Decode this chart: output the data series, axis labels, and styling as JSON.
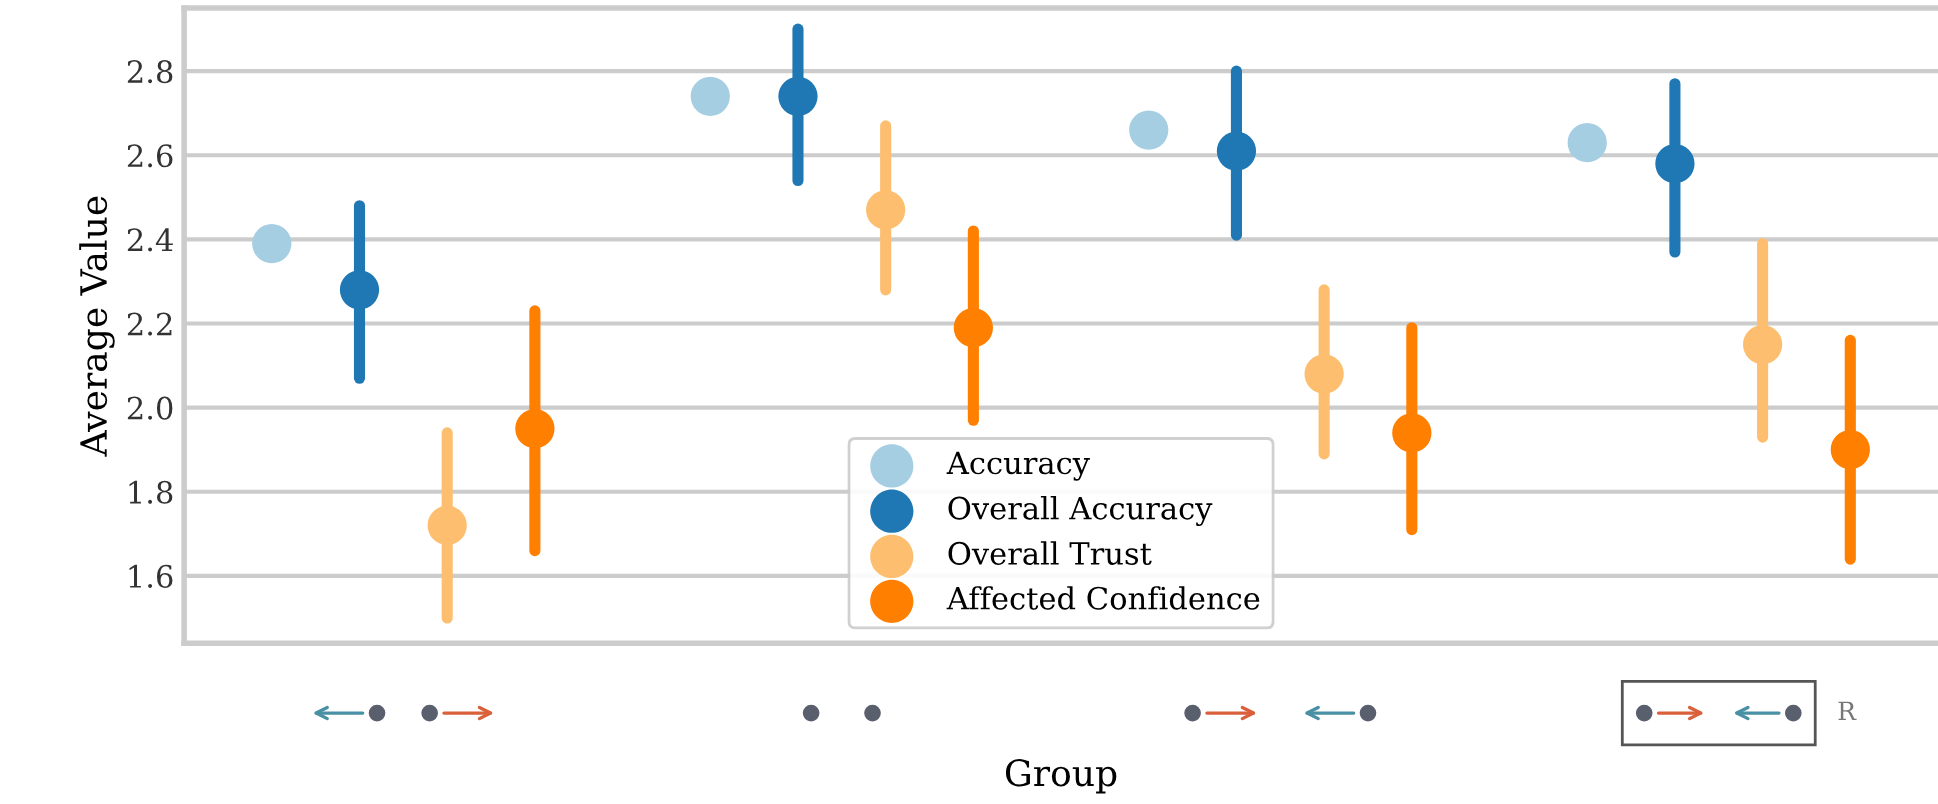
{
  "chart_data": {
    "type": "scatter",
    "xlabel": "Group",
    "ylabel": "Average Value",
    "categories": [
      null,
      null,
      null,
      null
    ],
    "series": [
      {
        "name": "Accuracy",
        "color": "#a6cee3",
        "values": [
          2.39,
          2.74,
          2.66,
          2.63
        ],
        "errors": [
          null,
          null,
          null,
          null
        ]
      },
      {
        "name": "Overall Accuracy",
        "color": "#1f78b4",
        "values": [
          2.28,
          2.74,
          2.61,
          2.58
        ],
        "errors": [
          [
            2.07,
            2.48
          ],
          [
            2.54,
            2.9
          ],
          [
            2.41,
            2.8
          ],
          [
            2.37,
            2.77
          ]
        ]
      },
      {
        "name": "Overall Trust",
        "color": "#fdbf6f",
        "values": [
          1.72,
          2.47,
          2.08,
          2.15
        ],
        "errors": [
          [
            1.5,
            1.94
          ],
          [
            2.28,
            2.67
          ],
          [
            1.89,
            2.28
          ],
          [
            1.93,
            2.39
          ]
        ]
      },
      {
        "name": "Affected Confidence",
        "color": "#ff7f00",
        "values": [
          1.95,
          2.19,
          1.94,
          1.9
        ],
        "errors": [
          [
            1.66,
            2.23
          ],
          [
            1.97,
            2.42
          ],
          [
            1.71,
            2.19
          ],
          [
            1.64,
            2.16
          ]
        ]
      }
    ],
    "ylim": [
      1.44,
      2.95
    ],
    "yticks": [
      1.6,
      1.8,
      {
        "value": 2,
        "label": "2.0"
      },
      2.2,
      2.4,
      2.6,
      2.8
    ],
    "grid": "y",
    "legend": "bottom",
    "marker": "circle",
    "annotations": [
      "R"
    ]
  }
}
